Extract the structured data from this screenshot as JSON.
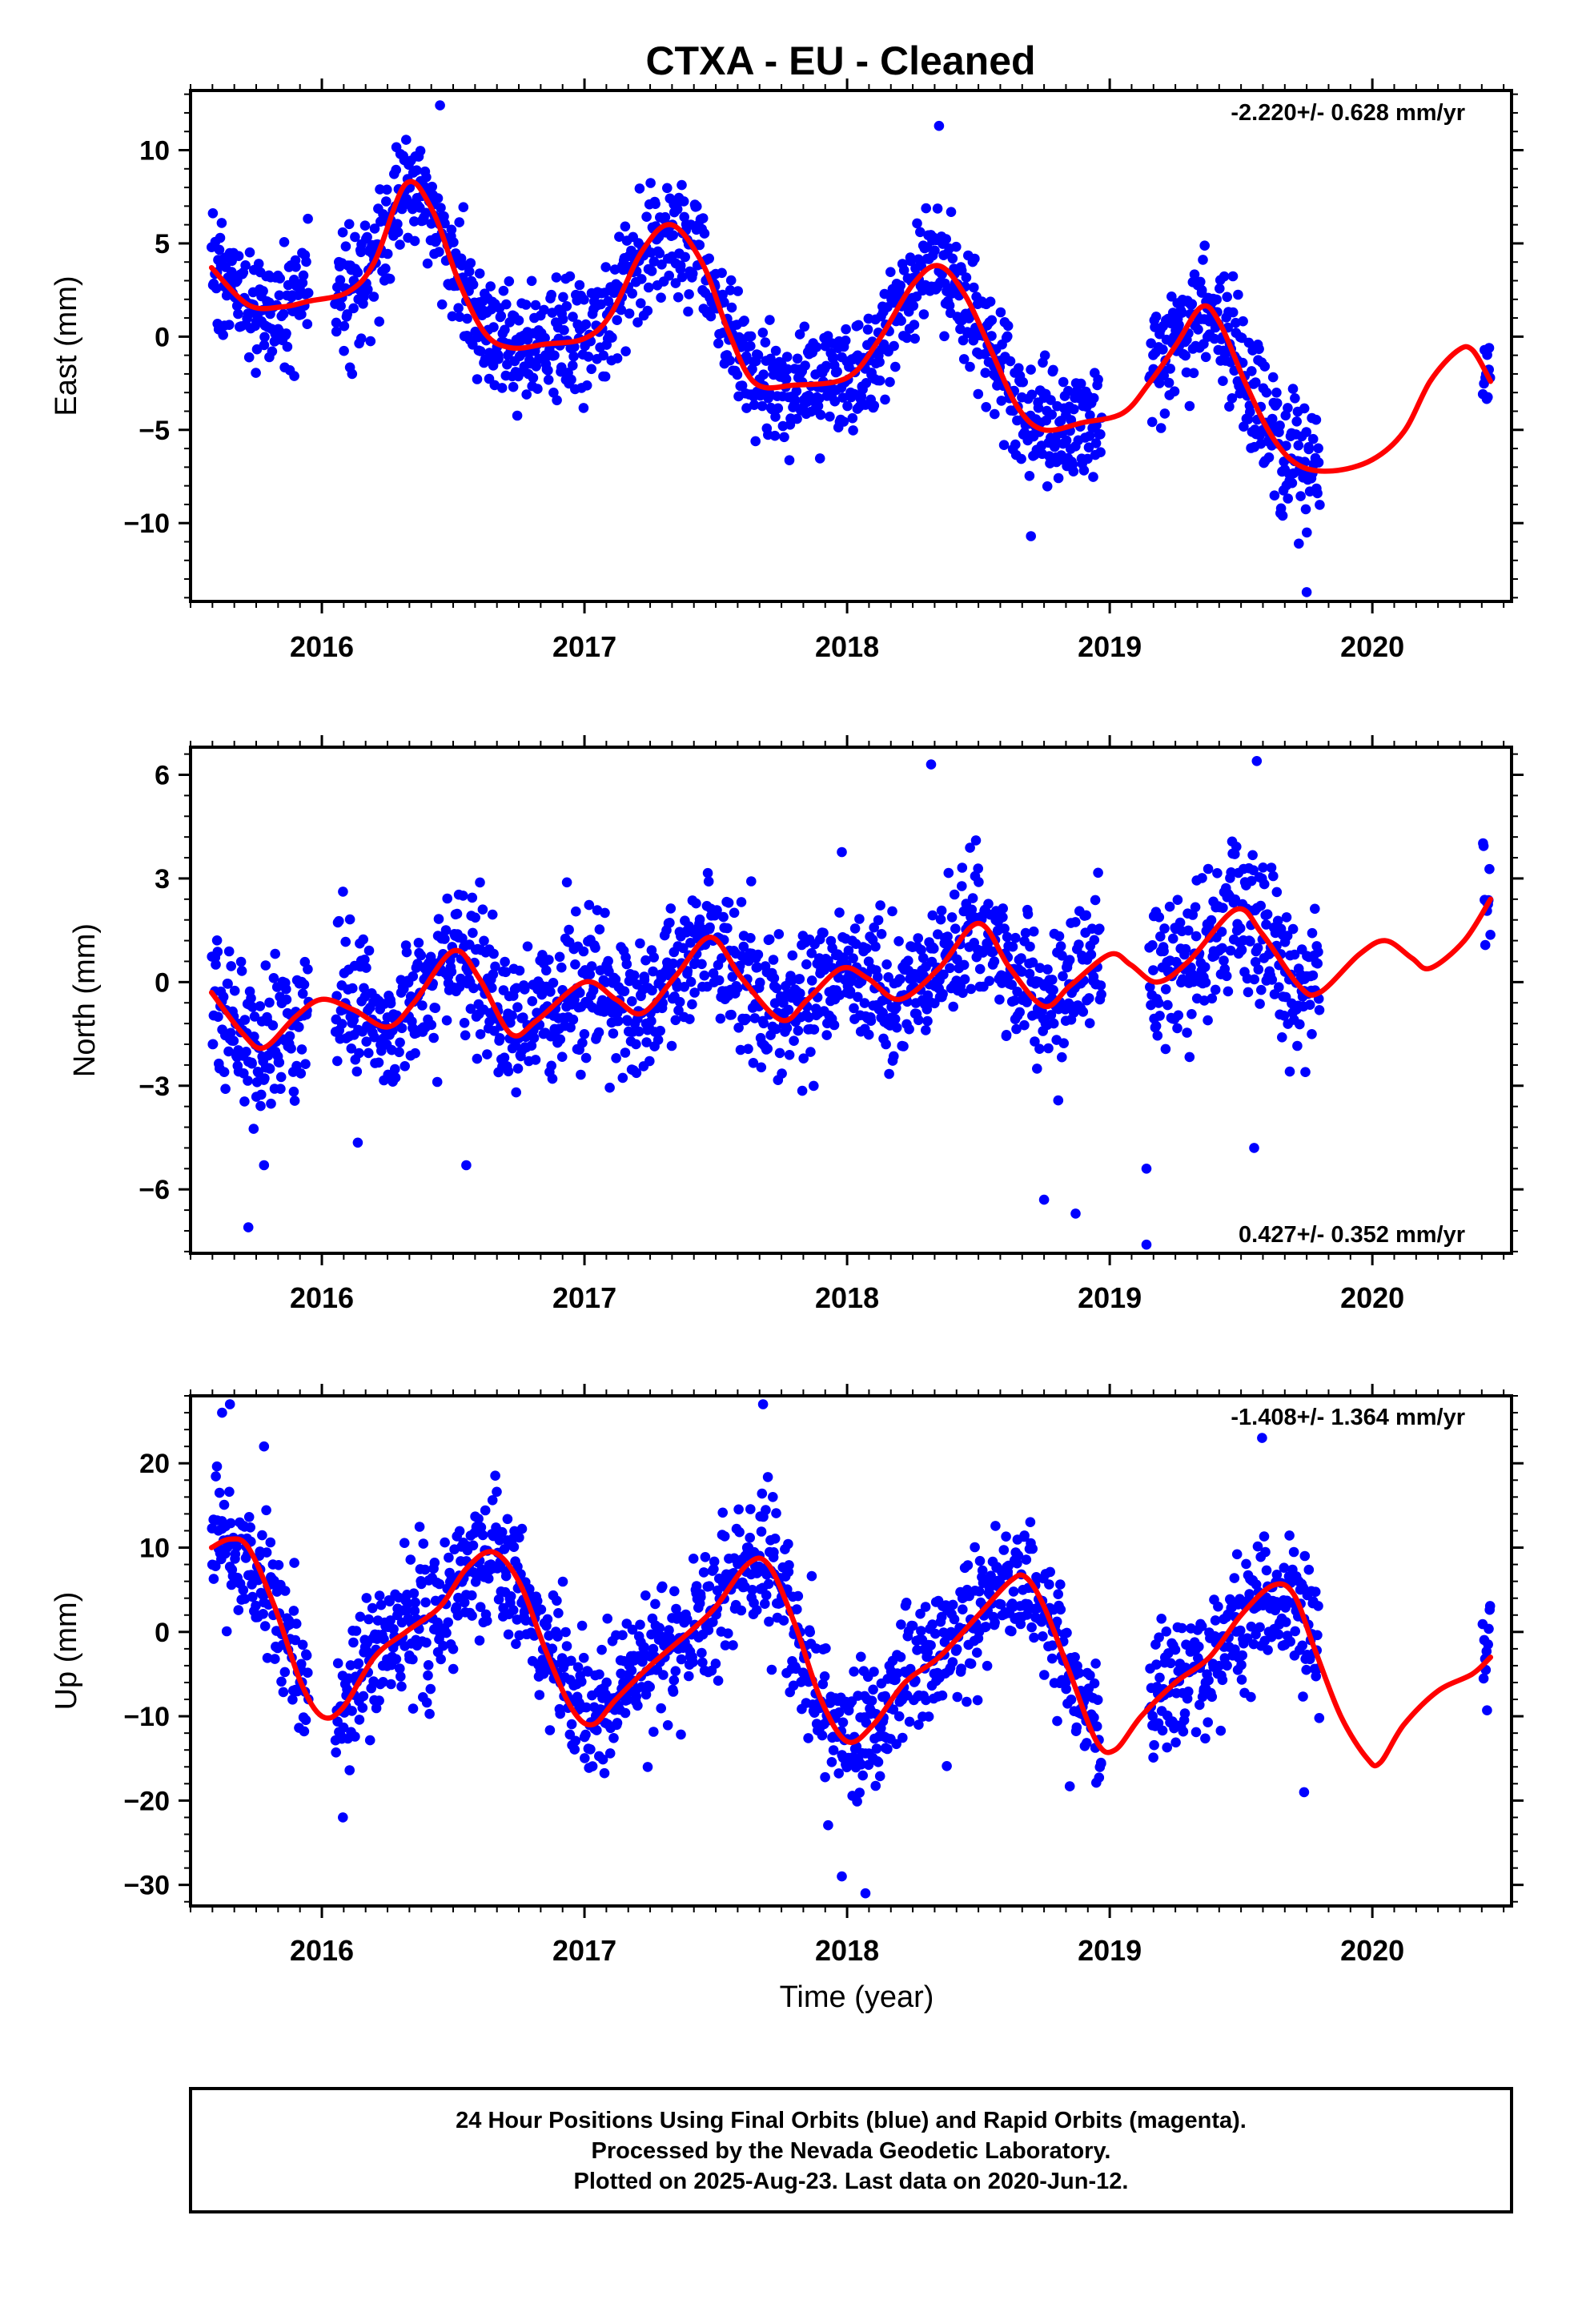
{
  "title": "CTXA  - EU - Cleaned",
  "footer": {
    "lines": [
      "24 Hour Positions Using Final Orbits (blue) and Rapid Orbits (magenta).",
      "Processed by the Nevada Geodetic Laboratory.",
      "Plotted on 2025-Aug-23. Last data on 2020-Jun-12."
    ]
  },
  "colors": {
    "points": "#0000ff",
    "fit": "#ff0000",
    "frame": "#000000"
  },
  "chart_data": [
    {
      "type": "scatter",
      "ylabel": "East (mm)",
      "xlabel": "",
      "rate_label": "-2.220+/- 0.628 mm/yr",
      "xlim": [
        2015.5,
        2020.53
      ],
      "ylim": [
        -14.2,
        13.2
      ],
      "yticks": [
        -10,
        -5,
        0,
        5,
        10
      ],
      "ytick_labels": [
        "−10",
        "−5",
        "0",
        "5",
        "10"
      ],
      "xticks": [
        2016,
        2017,
        2018,
        2019,
        2020
      ],
      "xtick_labels": [
        "2016",
        "2017",
        "2018",
        "2019",
        "2020"
      ],
      "data_ranges": [
        [
          2015.58,
          2015.95
        ],
        [
          2016.05,
          2017.35
        ],
        [
          2017.35,
          2018.9
        ],
        [
          2018.9,
          2018.97
        ],
        [
          2019.15,
          2019.8
        ],
        [
          2020.42,
          2020.45
        ]
      ],
      "point_count": 1500,
      "noise_sd": 1.6,
      "fit_anchors": [
        [
          2015.58,
          3.7
        ],
        [
          2015.72,
          1.7
        ],
        [
          2015.85,
          1.6
        ],
        [
          2015.95,
          1.9
        ],
        [
          2016.1,
          2.4
        ],
        [
          2016.2,
          4.0
        ],
        [
          2016.32,
          8.2
        ],
        [
          2016.42,
          6.8
        ],
        [
          2016.52,
          3.0
        ],
        [
          2016.62,
          0.2
        ],
        [
          2016.72,
          -0.6
        ],
        [
          2016.85,
          -0.4
        ],
        [
          2017.0,
          -0.1
        ],
        [
          2017.1,
          1.2
        ],
        [
          2017.22,
          4.6
        ],
        [
          2017.33,
          6.0
        ],
        [
          2017.45,
          3.9
        ],
        [
          2017.55,
          0.2
        ],
        [
          2017.65,
          -2.5
        ],
        [
          2017.8,
          -2.6
        ],
        [
          2018.0,
          -2.2
        ],
        [
          2018.12,
          -0.2
        ],
        [
          2018.25,
          2.8
        ],
        [
          2018.35,
          3.8
        ],
        [
          2018.45,
          2.2
        ],
        [
          2018.55,
          -0.8
        ],
        [
          2018.65,
          -3.8
        ],
        [
          2018.75,
          -5.0
        ],
        [
          2018.9,
          -4.6
        ],
        [
          2019.05,
          -4.1
        ],
        [
          2019.15,
          -2.5
        ],
        [
          2019.25,
          -0.5
        ],
        [
          2019.35,
          1.6
        ],
        [
          2019.42,
          0.7
        ],
        [
          2019.52,
          -2.6
        ],
        [
          2019.62,
          -5.4
        ],
        [
          2019.72,
          -6.9
        ],
        [
          2019.85,
          -7.2
        ],
        [
          2020.0,
          -6.6
        ],
        [
          2020.12,
          -5.1
        ],
        [
          2020.22,
          -2.4
        ],
        [
          2020.32,
          -0.8
        ],
        [
          2020.38,
          -0.7
        ],
        [
          2020.45,
          -2.4
        ]
      ],
      "outliers": [
        [
          2019.72,
          -11.1
        ],
        [
          2019.75,
          -13.7
        ],
        [
          2015.8,
          -1.1
        ],
        [
          2016.15,
          -0.1
        ],
        [
          2016.45,
          12.4
        ],
        [
          2018.35,
          11.3
        ],
        [
          2018.7,
          -10.7
        ]
      ]
    },
    {
      "type": "scatter",
      "ylabel": "North (mm)",
      "xlabel": "",
      "rate_label": "0.427+/- 0.352 mm/yr",
      "xlim": [
        2015.5,
        2020.53
      ],
      "ylim": [
        -7.85,
        6.8
      ],
      "yticks": [
        -6,
        -3,
        0,
        3,
        6
      ],
      "ytick_labels": [
        "−6",
        "−3",
        "0",
        "3",
        "6"
      ],
      "xticks": [
        2016,
        2017,
        2018,
        2019,
        2020
      ],
      "xtick_labels": [
        "2016",
        "2017",
        "2018",
        "2019",
        "2020"
      ],
      "data_ranges": [
        [
          2015.58,
          2015.95
        ],
        [
          2016.05,
          2017.35
        ],
        [
          2017.35,
          2018.9
        ],
        [
          2018.9,
          2018.97
        ],
        [
          2019.15,
          2019.8
        ],
        [
          2020.42,
          2020.45
        ]
      ],
      "point_count": 1500,
      "noise_sd": 1.05,
      "fit_anchors": [
        [
          2015.58,
          -0.3
        ],
        [
          2015.7,
          -1.5
        ],
        [
          2015.78,
          -1.9
        ],
        [
          2015.9,
          -1.0
        ],
        [
          2016.0,
          -0.5
        ],
        [
          2016.12,
          -0.8
        ],
        [
          2016.25,
          -1.3
        ],
        [
          2016.35,
          -0.6
        ],
        [
          2016.5,
          0.9
        ],
        [
          2016.6,
          0.1
        ],
        [
          2016.72,
          -1.5
        ],
        [
          2016.82,
          -1.1
        ],
        [
          2017.0,
          0.0
        ],
        [
          2017.12,
          -0.5
        ],
        [
          2017.22,
          -0.9
        ],
        [
          2017.35,
          0.2
        ],
        [
          2017.48,
          1.3
        ],
        [
          2017.6,
          0.1
        ],
        [
          2017.75,
          -1.1
        ],
        [
          2017.85,
          -0.5
        ],
        [
          2017.98,
          0.4
        ],
        [
          2018.08,
          0.1
        ],
        [
          2018.2,
          -0.5
        ],
        [
          2018.35,
          0.4
        ],
        [
          2018.5,
          1.7
        ],
        [
          2018.62,
          0.4
        ],
        [
          2018.75,
          -0.7
        ],
        [
          2018.85,
          -0.1
        ],
        [
          2019.0,
          0.8
        ],
        [
          2019.08,
          0.5
        ],
        [
          2019.18,
          0.0
        ],
        [
          2019.3,
          0.6
        ],
        [
          2019.48,
          2.1
        ],
        [
          2019.58,
          1.4
        ],
        [
          2019.72,
          -0.1
        ],
        [
          2019.8,
          -0.3
        ],
        [
          2019.95,
          0.8
        ],
        [
          2020.05,
          1.2
        ],
        [
          2020.15,
          0.7
        ],
        [
          2020.22,
          0.4
        ],
        [
          2020.35,
          1.2
        ],
        [
          2020.45,
          2.4
        ]
      ],
      "outliers": [
        [
          2015.72,
          -7.1
        ],
        [
          2015.78,
          -5.3
        ],
        [
          2016.55,
          -5.3
        ],
        [
          2018.32,
          6.3
        ],
        [
          2018.75,
          -6.3
        ],
        [
          2018.87,
          -6.7
        ],
        [
          2019.14,
          -7.6
        ],
        [
          2019.14,
          -5.4
        ],
        [
          2019.56,
          6.4
        ],
        [
          2019.55,
          -4.8
        ]
      ]
    },
    {
      "type": "scatter",
      "ylabel": "Up (mm)",
      "xlabel": "Time (year)",
      "rate_label": "-1.408+/- 1.364 mm/yr",
      "xlim": [
        2015.5,
        2020.53
      ],
      "ylim": [
        -32.5,
        28.0
      ],
      "yticks": [
        -30,
        -20,
        -10,
        0,
        10,
        20
      ],
      "ytick_labels": [
        "−30",
        "−20",
        "−10",
        "0",
        "10",
        "20"
      ],
      "xticks": [
        2016,
        2017,
        2018,
        2019,
        2020
      ],
      "xtick_labels": [
        "2016",
        "2017",
        "2018",
        "2019",
        "2020"
      ],
      "data_ranges": [
        [
          2015.58,
          2015.95
        ],
        [
          2016.05,
          2017.35
        ],
        [
          2017.35,
          2018.9
        ],
        [
          2018.9,
          2018.97
        ],
        [
          2019.15,
          2019.8
        ],
        [
          2020.42,
          2020.45
        ]
      ],
      "point_count": 1500,
      "noise_sd": 4.0,
      "fit_anchors": [
        [
          2015.58,
          10.0
        ],
        [
          2015.65,
          11.0
        ],
        [
          2015.72,
          10.0
        ],
        [
          2015.82,
          3.0
        ],
        [
          2015.92,
          -6.0
        ],
        [
          2016.0,
          -10.0
        ],
        [
          2016.08,
          -9.0
        ],
        [
          2016.2,
          -3.0
        ],
        [
          2016.32,
          0.0
        ],
        [
          2016.45,
          3.0
        ],
        [
          2016.55,
          7.5
        ],
        [
          2016.65,
          9.5
        ],
        [
          2016.75,
          6.0
        ],
        [
          2016.85,
          -2.0
        ],
        [
          2016.95,
          -9.0
        ],
        [
          2017.03,
          -11.0
        ],
        [
          2017.12,
          -8.0
        ],
        [
          2017.25,
          -4.0
        ],
        [
          2017.4,
          0.0
        ],
        [
          2017.5,
          3.0
        ],
        [
          2017.62,
          8.0
        ],
        [
          2017.7,
          8.0
        ],
        [
          2017.8,
          1.0
        ],
        [
          2017.9,
          -8.0
        ],
        [
          2018.0,
          -13.0
        ],
        [
          2018.1,
          -11.0
        ],
        [
          2018.22,
          -6.0
        ],
        [
          2018.35,
          -3.0
        ],
        [
          2018.5,
          2.0
        ],
        [
          2018.62,
          6.0
        ],
        [
          2018.68,
          6.5
        ],
        [
          2018.75,
          3.0
        ],
        [
          2018.85,
          -5.0
        ],
        [
          2018.95,
          -13.0
        ],
        [
          2019.02,
          -14.0
        ],
        [
          2019.12,
          -10.0
        ],
        [
          2019.25,
          -6.0
        ],
        [
          2019.38,
          -3.0
        ],
        [
          2019.5,
          2.0
        ],
        [
          2019.62,
          5.5
        ],
        [
          2019.7,
          4.5
        ],
        [
          2019.78,
          -2.0
        ],
        [
          2019.88,
          -10.0
        ],
        [
          2019.98,
          -15.0
        ],
        [
          2020.03,
          -15.5
        ],
        [
          2020.12,
          -11.0
        ],
        [
          2020.25,
          -7.0
        ],
        [
          2020.38,
          -5.0
        ],
        [
          2020.45,
          -3.0
        ]
      ],
      "outliers": [
        [
          2015.62,
          26.0
        ],
        [
          2015.65,
          27.0
        ],
        [
          2015.78,
          22.0
        ],
        [
          2016.08,
          -22.0
        ],
        [
          2017.68,
          27.0
        ],
        [
          2017.98,
          -29.0
        ],
        [
          2018.07,
          -31.0
        ],
        [
          2019.58,
          23.0
        ],
        [
          2019.74,
          -19.0
        ]
      ]
    }
  ]
}
